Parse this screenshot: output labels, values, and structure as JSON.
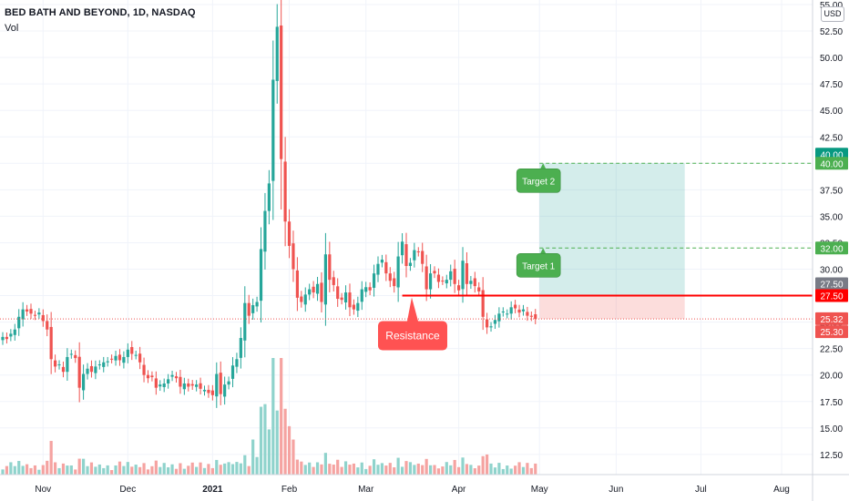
{
  "header": {
    "title": "BED BATH AND BEYOND, 1D, NASDAQ",
    "volume_label": "Vol"
  },
  "currency_button": "USD",
  "colors": {
    "up": "#26a69a",
    "down": "#ef5350",
    "vol_up": "#8fd3cc",
    "vol_down": "#f5a3a1",
    "resistance": "#ff0000",
    "target_zone": "#26a69a",
    "stop_zone": "#ef5350",
    "callout_green": "#4caf50",
    "callout_red": "#ff5252",
    "axis_text": "#131722",
    "grid": "#f0f3fa"
  },
  "chart_data": {
    "type": "candlestick",
    "title": "BED BATH AND BEYOND, 1D, NASDAQ",
    "ylim": [
      10.25,
      55.0
    ],
    "y_ticks": [
      "55.00",
      "52.50",
      "50.00",
      "47.50",
      "45.00",
      "42.50",
      "40.00",
      "37.50",
      "35.00",
      "32.50",
      "30.00",
      "27.50",
      "25.00",
      "22.50",
      "20.00",
      "17.50",
      "15.00",
      "12.50"
    ],
    "x_ticks": [
      {
        "label": "Nov",
        "bar": 10
      },
      {
        "label": "Dec",
        "bar": 31
      },
      {
        "label": "2021",
        "bar": 52
      },
      {
        "label": "Feb",
        "bar": 71
      },
      {
        "label": "Mar",
        "bar": 90
      },
      {
        "label": "Apr",
        "bar": 113
      },
      {
        "label": "May",
        "bar": 133
      },
      {
        "label": "Jun",
        "bar": 152
      },
      {
        "label": "Jul",
        "bar": 173
      },
      {
        "label": "Aug",
        "bar": 193
      }
    ],
    "close": [
      23.6,
      23.4,
      23.9,
      24.3,
      25.5,
      26.2,
      26.0,
      25.8,
      25.6,
      25.9,
      25.1,
      24.3,
      21.5,
      20.8,
      21.0,
      20.3,
      21.7,
      22.0,
      21.6,
      18.8,
      20.1,
      20.6,
      20.3,
      20.8,
      21.0,
      21.2,
      21.3,
      21.5,
      21.8,
      21.4,
      21.7,
      22.4,
      22.0,
      21.9,
      21.2,
      20.0,
      19.7,
      19.8,
      18.8,
      19.1,
      19.2,
      19.6,
      20.0,
      19.7,
      18.9,
      19.2,
      18.9,
      19.0,
      19.1,
      18.7,
      18.6,
      18.3,
      18.1,
      20.1,
      18.2,
      19.1,
      19.4,
      20.9,
      21.5,
      23.5,
      26.8,
      25.6,
      26.6,
      26.9,
      31.9,
      35.5,
      38.1,
      47.9,
      52.9,
      40.4,
      34.5,
      32.2,
      30.0,
      27.3,
      26.9,
      27.6,
      28.1,
      27.8,
      28.6,
      26.9,
      31.4,
      29.0,
      28.5,
      27.2,
      27.1,
      27.8,
      26.4,
      26.2,
      26.8,
      28.1,
      28.3,
      28.0,
      29.6,
      30.5,
      30.9,
      29.6,
      28.9,
      28.4,
      31.2,
      32.6,
      30.3,
      30.6,
      31.8,
      31.6,
      30.5,
      28.1,
      29.6,
      29.6,
      28.8,
      28.9,
      29.0,
      29.8,
      28.6,
      28.0,
      30.8,
      28.6,
      28.9,
      28.4,
      27.9,
      25.5,
      24.5,
      24.6,
      25.2,
      25.8,
      26.0,
      25.8,
      26.4,
      26.3,
      25.9,
      26.2,
      25.6,
      25.5,
      25.3
    ],
    "resistance": {
      "label": "Resistance",
      "price": 27.5
    },
    "target_1": {
      "label": "Target 1",
      "price": 32.0
    },
    "target_2": {
      "label": "Target 2",
      "price": 40.0
    },
    "stop_level": 25.3,
    "price_labels": [
      {
        "text": "40.00",
        "price": 40.0,
        "color": "#089981"
      },
      {
        "text": "40.00",
        "price": 40.0,
        "color": "#4caf50"
      },
      {
        "text": "32.00",
        "price": 32.0,
        "color": "#4caf50"
      },
      {
        "text": "27.50",
        "price": 27.5,
        "color": "#787b86"
      },
      {
        "text": "27.50",
        "price": 27.5,
        "color": "#ff0000"
      },
      {
        "text": "25.32",
        "price": 25.32,
        "color": "#ef5350"
      },
      {
        "text": "25.30",
        "price": 25.3,
        "color": "#ef5350"
      }
    ]
  }
}
